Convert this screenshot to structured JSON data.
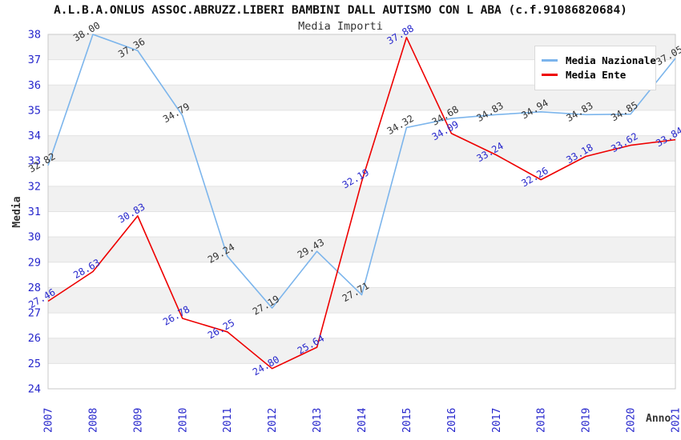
{
  "chart": {
    "title": "A.L.B.A.ONLUS ASSOC.ABRUZZ.LIBERI BAMBINI DALL AUTISMO CON L ABA (c.f.91086820684)",
    "subtitle": "Media Importi"
  },
  "chart_data": {
    "type": "line",
    "title": "Media Importi",
    "x": [
      2007,
      2008,
      2009,
      2010,
      2011,
      2012,
      2013,
      2014,
      2015,
      2016,
      2017,
      2018,
      2019,
      2020,
      2021
    ],
    "series": [
      {
        "name": "Media Nazionale",
        "color": "#7cb5ec",
        "label_color": "#333333",
        "values": [
          32.82,
          38.0,
          37.36,
          34.79,
          29.24,
          27.19,
          29.43,
          27.71,
          34.32,
          34.68,
          34.83,
          34.94,
          34.83,
          34.85,
          37.05
        ]
      },
      {
        "name": "Media Ente",
        "color": "#ee0000",
        "label_color": "#2626cc",
        "values": [
          27.46,
          28.63,
          30.83,
          26.78,
          26.25,
          24.8,
          25.64,
          32.19,
          37.88,
          34.09,
          33.24,
          32.26,
          33.18,
          33.62,
          33.84
        ]
      }
    ],
    "xlabel": "Anno",
    "ylabel": "Media",
    "ylim": [
      24,
      38
    ],
    "y_tick_step": 1,
    "grid": "horizontal",
    "band_pattern": "alternating-gray-white",
    "legend_position": "top-right",
    "colors": {
      "tick_label": "#2626cc",
      "axis_title": "#333333",
      "band": "#f1f1f1",
      "gridline": "#e2e2e2",
      "plot_border": "#c9c9c9",
      "background": "#ffffff"
    }
  }
}
